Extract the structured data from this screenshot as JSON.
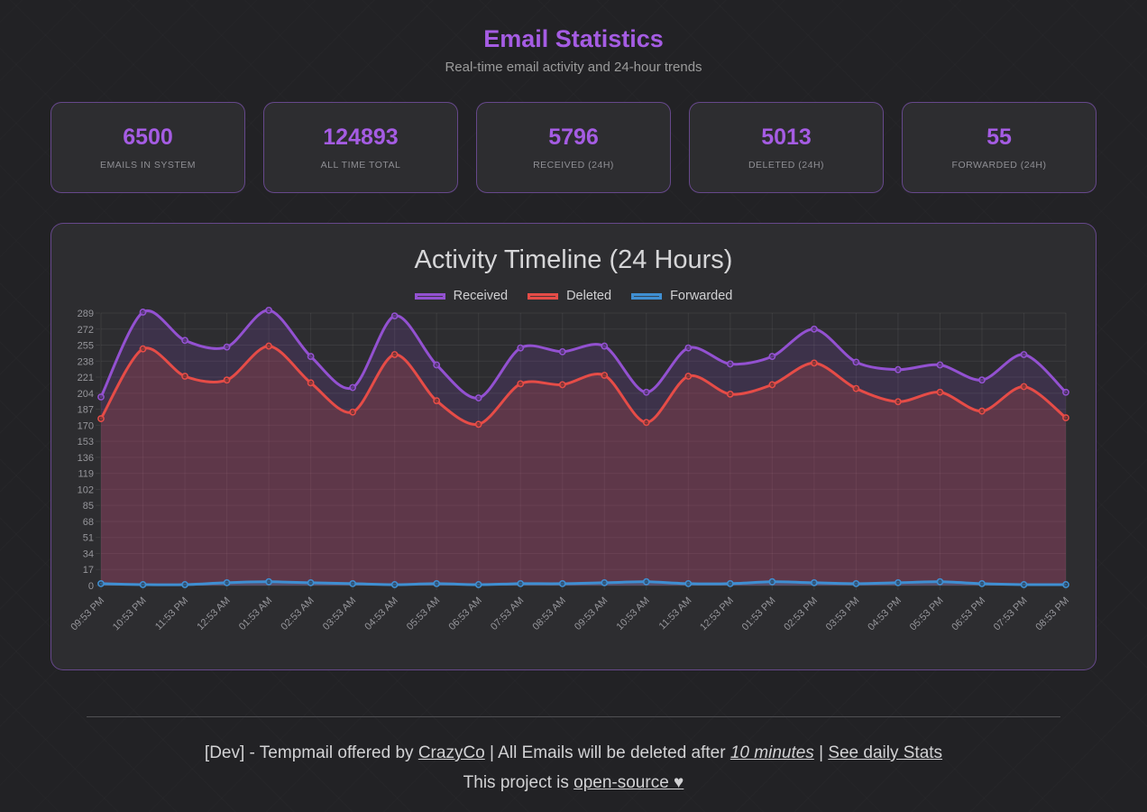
{
  "theme": {
    "page_bg": "#222225",
    "card_bg": "#2d2d30",
    "card_border": "rgba(160,100,230,0.5)",
    "accent": "#a55ce3",
    "text_muted": "#9b9b9b",
    "grid": "rgba(255,255,255,0.065)",
    "axis_text": "#96969b"
  },
  "page": {
    "title": "Email Statistics",
    "subtitle": "Real-time email activity and 24-hour trends"
  },
  "stats": {
    "cards": [
      {
        "value": "6500",
        "label": "EMAILS IN SYSTEM"
      },
      {
        "value": "124893",
        "label": "ALL TIME TOTAL"
      },
      {
        "value": "5796",
        "label": "RECEIVED (24H)"
      },
      {
        "value": "5013",
        "label": "DELETED (24H)"
      },
      {
        "value": "55",
        "label": "FORWARDED (24H)"
      }
    ]
  },
  "chart": {
    "title": "Activity Timeline (24 Hours)"
  },
  "chart_data": {
    "type": "line",
    "title": "Activity Timeline (24 Hours)",
    "legend_position": "top",
    "grid": true,
    "ylim": [
      0,
      289
    ],
    "ytick_step": 17,
    "x": [
      "09:53 PM",
      "10:53 PM",
      "11:53 PM",
      "12:53 AM",
      "01:53 AM",
      "02:53 AM",
      "03:53 AM",
      "04:53 AM",
      "05:53 AM",
      "06:53 AM",
      "07:53 AM",
      "08:53 AM",
      "09:53 AM",
      "10:53 AM",
      "11:53 AM",
      "12:53 PM",
      "01:53 PM",
      "02:53 PM",
      "03:53 PM",
      "04:53 PM",
      "05:53 PM",
      "06:53 PM",
      "07:53 PM",
      "08:53 PM"
    ],
    "series": [
      {
        "name": "Received",
        "color": "#9351d1",
        "fill": "rgba(148,82,209,0.16)",
        "values": [
          200,
          290,
          260,
          253,
          292,
          243,
          210,
          286,
          234,
          199,
          252,
          248,
          254,
          205,
          252,
          235,
          243,
          272,
          237,
          229,
          234,
          218,
          245,
          205
        ]
      },
      {
        "name": "Deleted",
        "color": "#e64c47",
        "fill": "rgba(230,76,70,0.2)",
        "values": [
          177,
          251,
          222,
          218,
          254,
          215,
          184,
          245,
          196,
          171,
          214,
          213,
          223,
          173,
          222,
          203,
          213,
          236,
          209,
          195,
          205,
          185,
          211,
          178
        ]
      },
      {
        "name": "Forwarded",
        "color": "#3f8fd2",
        "fill": "rgba(66,146,212,0.25)",
        "values": [
          2,
          1,
          1,
          3,
          4,
          3,
          2,
          1,
          2,
          1,
          2,
          2,
          3,
          4,
          2,
          2,
          4,
          3,
          2,
          3,
          4,
          2,
          1,
          1
        ]
      }
    ]
  },
  "footer": {
    "line1_prefix": "[Dev] - Tempmail offered by ",
    "crazyco_link": "CrazyCo",
    "line1_mid": " | All Emails will be deleted after ",
    "minutes_text": "10 minutes",
    "line1_sep": " | ",
    "daily_stats_link": "See daily Stats",
    "line2_prefix": "This project is ",
    "open_source_link": "open-source ♥"
  }
}
